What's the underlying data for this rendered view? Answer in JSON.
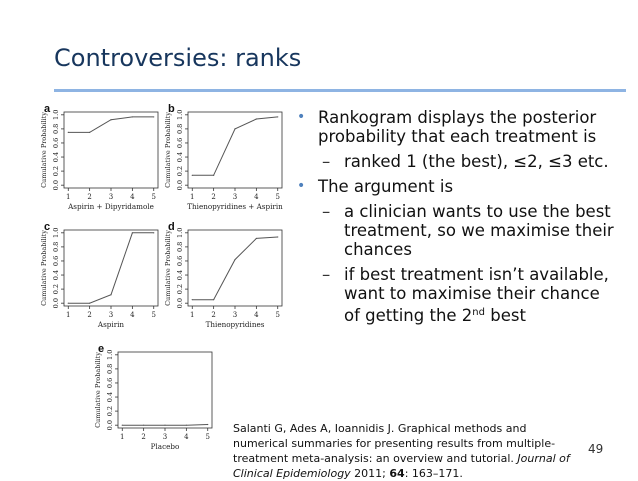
{
  "slide": {
    "title": "Controversies: ranks",
    "page_number": "49",
    "bullets": [
      {
        "text": "Rankogram displays the posterior probability that each treatment is"
      },
      {
        "sub": "ranked 1 (the best), ≤2, ≤3 etc."
      },
      {
        "text": "The argument is"
      },
      {
        "sub": "a clinician wants to use the best treatment, so we maximise their chances"
      },
      {
        "sub_pre": "if best treatment isn’t available, want to maximise their chance of getting the 2",
        "sup": "nd",
        "sub_post": " best"
      }
    ],
    "citation": {
      "authors": "Salanti G, Ades A, Ioannidis J. Graphical methods and numerical summaries for presenting results from multiple-treatment meta-analysis: an overview and tutorial. ",
      "journal": "Journal of Clinical Epidemiology",
      "year": " 2011; ",
      "volume": "64",
      "pages": ": 163–171."
    }
  },
  "chart_data": [
    {
      "type": "line",
      "panel": "a",
      "xlabel": "Aspirin + Dipyridamole",
      "ylabel": "Cumulative Probability",
      "x": [
        1,
        2,
        3,
        4,
        5
      ],
      "y": [
        0.75,
        0.75,
        0.93,
        0.97,
        0.97
      ],
      "xticks": [
        "1",
        "2",
        "3",
        "4",
        "5"
      ],
      "yticks": [
        "0.0",
        "0.2",
        "0.4",
        "0.6",
        "0.8",
        "1.0"
      ],
      "ylim": [
        0,
        1
      ]
    },
    {
      "type": "line",
      "panel": "b",
      "xlabel": "Thienopyridines + Aspirin",
      "ylabel": "Cumulative Probability",
      "x": [
        1,
        2,
        3,
        4,
        5
      ],
      "y": [
        0.14,
        0.14,
        0.8,
        0.94,
        0.97
      ],
      "xticks": [
        "1",
        "2",
        "3",
        "4",
        "5"
      ],
      "yticks": [
        "0.0",
        "0.2",
        "0.4",
        "0.6",
        "0.8",
        "1.0"
      ],
      "ylim": [
        0,
        1
      ]
    },
    {
      "type": "line",
      "panel": "c",
      "xlabel": "Aspirin",
      "ylabel": "Cumulative Probability",
      "x": [
        1,
        2,
        3,
        4,
        5
      ],
      "y": [
        0.0,
        0.0,
        0.12,
        1.0,
        1.0
      ],
      "xticks": [
        "1",
        "2",
        "3",
        "4",
        "5"
      ],
      "yticks": [
        "0.0",
        "0.2",
        "0.4",
        "0.6",
        "0.8",
        "1.0"
      ],
      "ylim": [
        0,
        1
      ]
    },
    {
      "type": "line",
      "panel": "d",
      "xlabel": "Thienopyridines",
      "ylabel": "Cumulative Probability",
      "x": [
        1,
        2,
        3,
        4,
        5
      ],
      "y": [
        0.05,
        0.05,
        0.62,
        0.92,
        0.94
      ],
      "xticks": [
        "1",
        "2",
        "3",
        "4",
        "5"
      ],
      "yticks": [
        "0.0",
        "0.2",
        "0.4",
        "0.6",
        "0.8",
        "1.0"
      ],
      "ylim": [
        0,
        1
      ]
    },
    {
      "type": "line",
      "panel": "e",
      "xlabel": "Placebo",
      "ylabel": "Cumulative Probability",
      "x": [
        1,
        2,
        3,
        4,
        5
      ],
      "y": [
        0.0,
        0.0,
        0.0,
        0.0,
        0.01
      ],
      "xticks": [
        "1",
        "2",
        "3",
        "4",
        "5"
      ],
      "yticks": [
        "0.0",
        "0.2",
        "0.4",
        "0.6",
        "0.8",
        "1.0"
      ],
      "ylim": [
        0,
        1
      ]
    }
  ]
}
